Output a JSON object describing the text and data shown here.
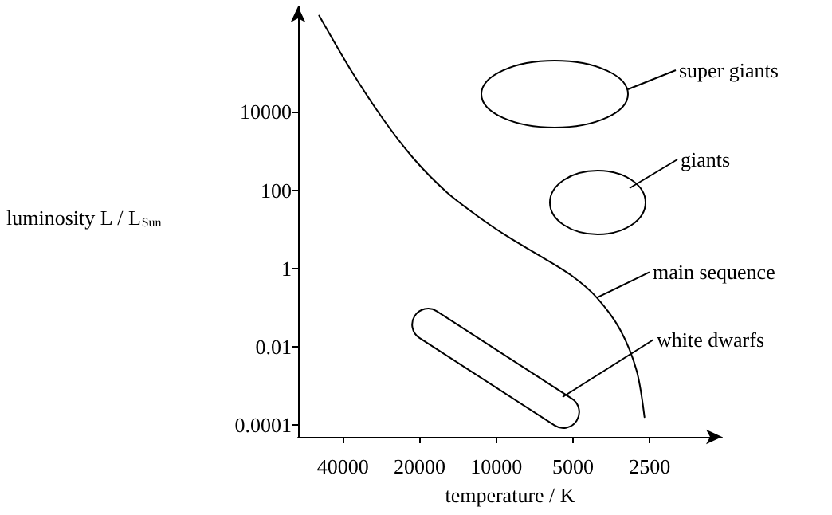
{
  "chart_data": {
    "type": "line",
    "xlabel": "temperature / K",
    "ylabel": "luminosity L / L$_{Sun}$",
    "log": "xy",
    "xlim": [
      60000,
      1300
    ],
    "ylim": [
      5e-05,
      5000000
    ],
    "xticks": [
      40000,
      20000,
      10000,
      5000,
      2500
    ],
    "yticks": [
      0.0001,
      0.01,
      1,
      100,
      10000
    ],
    "marker": "none",
    "line_style": "solid",
    "grid": false,
    "series": [
      {
        "color": "#000000",
        "x": [
          49600,
          37300,
          27900,
          21000,
          15700,
          11800,
          8900,
          6650,
          5000,
          4030,
          3250,
          2810,
          2620
        ],
        "values": [
          2900000,
          120000,
          6800,
          620,
          91,
          21.5,
          6.2,
          2,
          0.62,
          0.18,
          0.026,
          0.0024,
          0.00016
        ]
      }
    ],
    "annotations": [
      "super giants",
      "giants",
      {
        "text": "main sequence",
        "x": 4030,
        "y": 0.18
      },
      "white dwarfs"
    ]
  }
}
